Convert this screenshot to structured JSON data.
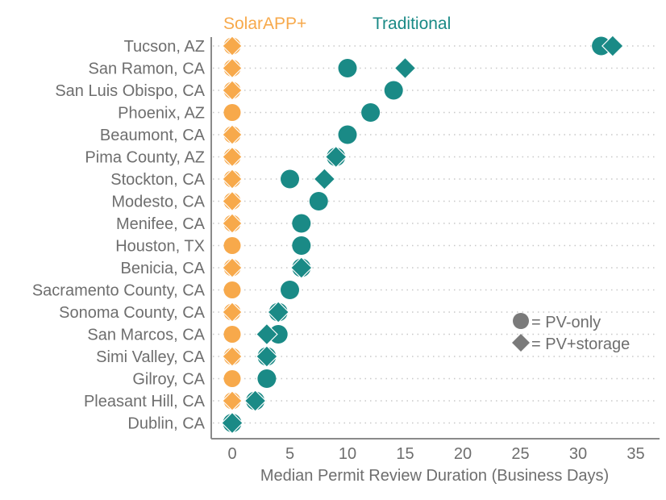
{
  "chart_data": {
    "type": "scatter",
    "subtype": "dot-plot",
    "xlabel": "Median Permit Review Duration (Business Days)",
    "xlim": [
      -2,
      38
    ],
    "x_ticks": [
      0,
      5,
      10,
      15,
      20,
      25,
      30,
      35
    ],
    "grid": "horizontal dotted lines per city",
    "categories": [
      "Tucson, AZ",
      "San Ramon, CA",
      "San Luis Obispo, CA",
      "Phoenix, AZ",
      "Beaumont, CA",
      "Pima County, AZ",
      "Stockton, CA",
      "Modesto, CA",
      "Menifee, CA",
      "Houston, TX",
      "Benicia, CA",
      "Sacramento County, CA",
      "Sonoma County, CA",
      "San Marcos, CA",
      "Simi Valley, CA",
      "Gilroy, CA",
      "Pleasant Hill, CA",
      "Dublin, CA"
    ],
    "series": [
      {
        "name": "SolarAPP+",
        "color": "#f7a94b",
        "pv_only": [
          0,
          0,
          0,
          0,
          0,
          0,
          0,
          0,
          0,
          0,
          0,
          0,
          0,
          0,
          0,
          0,
          0,
          0
        ],
        "pv_storage": [
          0,
          0,
          0,
          null,
          0,
          0,
          0,
          0,
          0,
          null,
          0,
          null,
          0,
          null,
          0,
          null,
          0,
          0
        ]
      },
      {
        "name": "Traditional",
        "color": "#1a8a86",
        "pv_only": [
          32,
          10,
          14,
          12,
          10,
          9,
          5,
          7.5,
          6,
          6,
          6,
          5,
          4,
          4,
          3,
          3,
          2,
          0
        ],
        "pv_storage": [
          33,
          15,
          null,
          null,
          null,
          9,
          8,
          null,
          null,
          null,
          6,
          null,
          4,
          3,
          3,
          null,
          2,
          0
        ]
      }
    ],
    "legend": {
      "series_position": "top",
      "shape_position": "right",
      "pv_only_label": "= PV-only",
      "pv_storage_label": "= PV+storage",
      "shape_color": "#7a7a7a"
    }
  }
}
